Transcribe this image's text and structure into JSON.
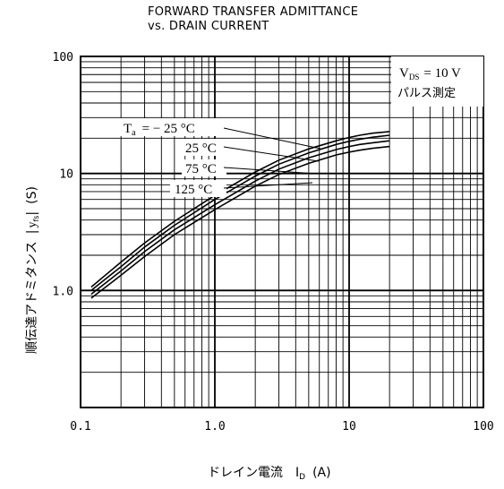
{
  "chart_data": {
    "type": "line",
    "title": "FORWARD TRANSFER ADMITTANCE",
    "subtitle": "vs. DRAIN CURRENT",
    "xlabel": "ドレイン電流　I",
    "xlabel_sub": "D",
    "xlabel_unit": "(A)",
    "ylabel": "順伝達アドミタンス",
    "ylabel_var": "y",
    "ylabel_sub": "fs",
    "ylabel_unit": "(S)",
    "x_scale": "log",
    "y_scale": "log",
    "xlim": [
      0.1,
      100
    ],
    "ylim": [
      0.1,
      100
    ],
    "grid": true,
    "x_ticks": [
      {
        "value": 0.1,
        "label": "0.1"
      },
      {
        "value": 1,
        "label": "1.0"
      },
      {
        "value": 10,
        "label": "10"
      },
      {
        "value": 100,
        "label": "100"
      }
    ],
    "y_ticks": [
      {
        "value": 1,
        "label": "1.0"
      },
      {
        "value": 10,
        "label": "10"
      },
      {
        "value": 100,
        "label": "100"
      }
    ],
    "condition": {
      "vds_label": "V",
      "vds_sub": "DS",
      "vds_value": "= 10 V",
      "pulse_label": "パルス測定"
    },
    "series": [
      {
        "name": "T = − 25 °C",
        "label_var": "T",
        "label_sub": "a",
        "label_value": "= − 25 °C",
        "x": [
          0.12,
          0.2,
          0.3,
          0.5,
          1,
          2,
          3,
          5,
          8,
          10,
          12,
          15,
          20
        ],
        "y": [
          1.07,
          1.75,
          2.55,
          3.9,
          6.5,
          10.3,
          13.0,
          16.2,
          19.0,
          20.3,
          21.2,
          22.1,
          22.8
        ]
      },
      {
        "name": "25 °C",
        "label_value": "25 °C",
        "x": [
          0.12,
          0.2,
          0.3,
          0.5,
          1,
          2,
          3,
          5,
          8,
          10,
          12,
          15,
          20
        ],
        "y": [
          1.0,
          1.6,
          2.35,
          3.6,
          6.0,
          9.5,
          12.0,
          15.0,
          17.7,
          18.8,
          19.6,
          20.4,
          21.2
        ]
      },
      {
        "name": "75 °C",
        "label_value": "75 °C",
        "x": [
          0.12,
          0.2,
          0.3,
          0.5,
          1,
          2,
          3,
          5,
          8,
          10,
          12,
          15,
          20
        ],
        "y": [
          0.93,
          1.47,
          2.15,
          3.3,
          5.4,
          8.6,
          10.9,
          13.6,
          16.0,
          17.0,
          17.7,
          18.3,
          19.0
        ]
      },
      {
        "name": "125 °C",
        "label_value": "125 °C",
        "x": [
          0.12,
          0.2,
          0.3,
          0.5,
          1,
          2,
          3,
          5,
          8,
          10,
          12,
          15,
          20
        ],
        "y": [
          0.86,
          1.35,
          1.95,
          3.0,
          4.9,
          7.8,
          9.8,
          12.2,
          14.4,
          15.2,
          15.8,
          16.4,
          17.0
        ]
      }
    ]
  }
}
